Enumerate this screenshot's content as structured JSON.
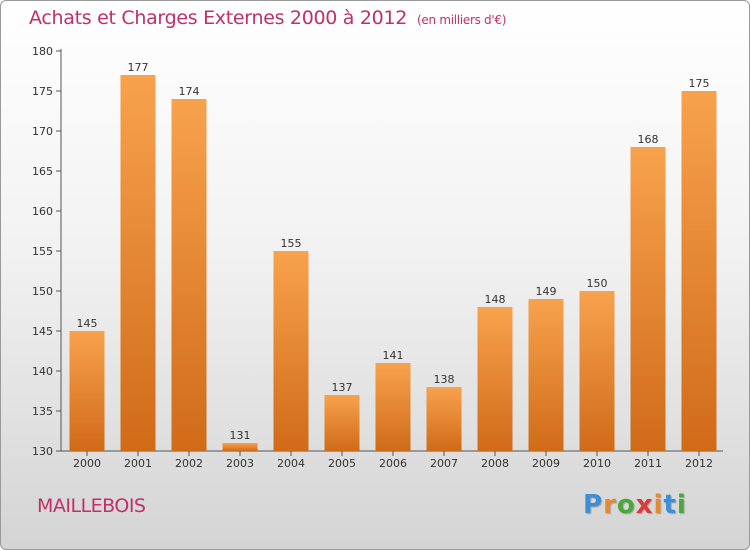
{
  "title": {
    "main": "Achats et Charges Externes 2000 à 2012",
    "unit": "(en milliers d'€)"
  },
  "commune": "MAILLEBOIS",
  "logo": {
    "letters": [
      "P",
      "r",
      "o",
      "x",
      "i",
      "t",
      "i"
    ],
    "colors": [
      "#3a8fd6",
      "#e8892a",
      "#4aa83a",
      "#d93a3a",
      "#e8892a",
      "#3a8fd6",
      "#4aa83a"
    ]
  },
  "colors": {
    "title": "#c0306a",
    "bar_light": "#f8a24e",
    "bar_dark": "#d06b18",
    "axis": "#555555"
  },
  "chart_data": {
    "type": "bar",
    "categories": [
      "2000",
      "2001",
      "2002",
      "2003",
      "2004",
      "2005",
      "2006",
      "2007",
      "2008",
      "2009",
      "2010",
      "2011",
      "2012"
    ],
    "values": [
      145,
      177,
      174,
      131,
      155,
      137,
      141,
      138,
      148,
      149,
      150,
      168,
      175
    ],
    "title": "Achats et Charges Externes 2000 à 2012",
    "ylabel": "",
    "xlabel": "",
    "ylim": [
      130,
      180
    ],
    "yticks": [
      130,
      135,
      140,
      145,
      150,
      155,
      160,
      165,
      170,
      175,
      180
    ],
    "grid": false,
    "data_labels": true
  }
}
